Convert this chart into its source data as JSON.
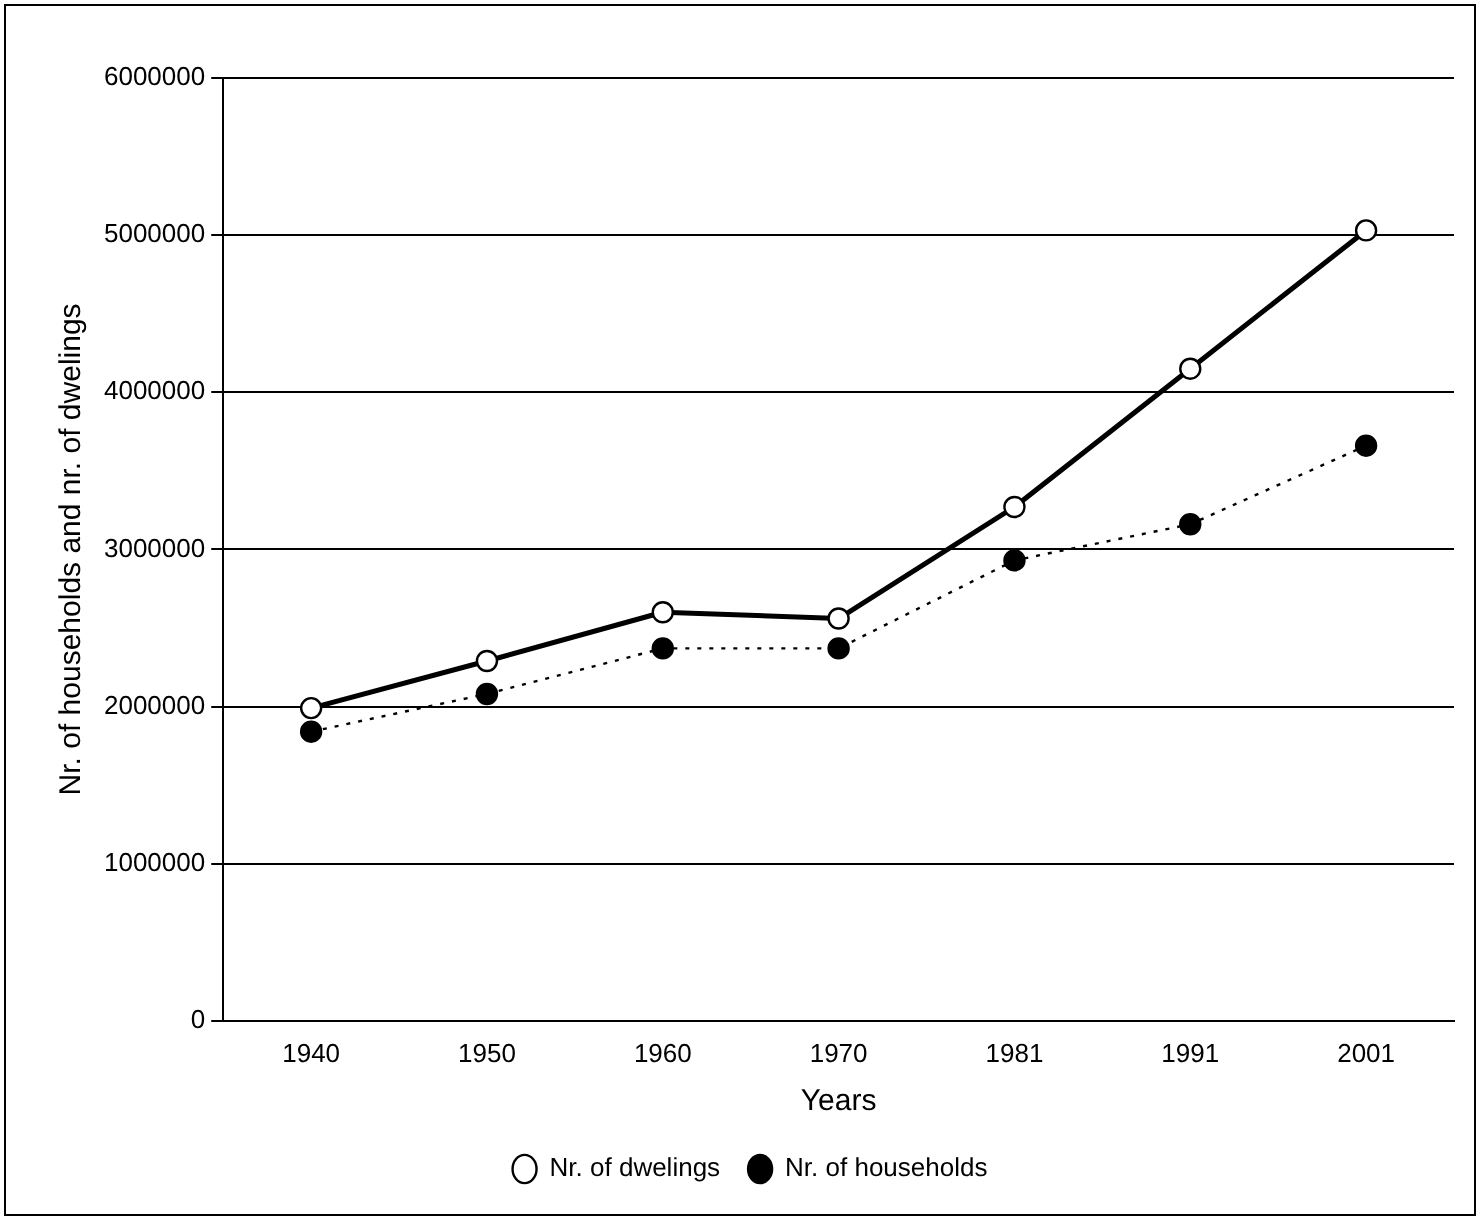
{
  "chart_data": {
    "type": "line",
    "xlabel": "Years",
    "ylabel": "Nr. of households and nr. of dwelings",
    "categories": [
      "1940",
      "1950",
      "1960",
      "1970",
      "1981",
      "1991",
      "2001"
    ],
    "series": [
      {
        "name": "Nr. of dwelings",
        "color": "#000000",
        "line_style": "solid",
        "values": [
          1990000,
          2290000,
          2600000,
          2560000,
          3270000,
          4150000,
          5030000
        ]
      },
      {
        "name": "Nr. of households",
        "color": "#000000",
        "line_style": "dotted",
        "values": [
          1840000,
          2080000,
          2370000,
          2370000,
          2930000,
          3160000,
          3660000
        ]
      }
    ],
    "ylim": [
      0,
      6000000
    ],
    "yticks": [
      0,
      1000000,
      2000000,
      3000000,
      4000000,
      5000000,
      6000000
    ],
    "grid": "y",
    "legend": "bottom",
    "marker": "circle"
  }
}
